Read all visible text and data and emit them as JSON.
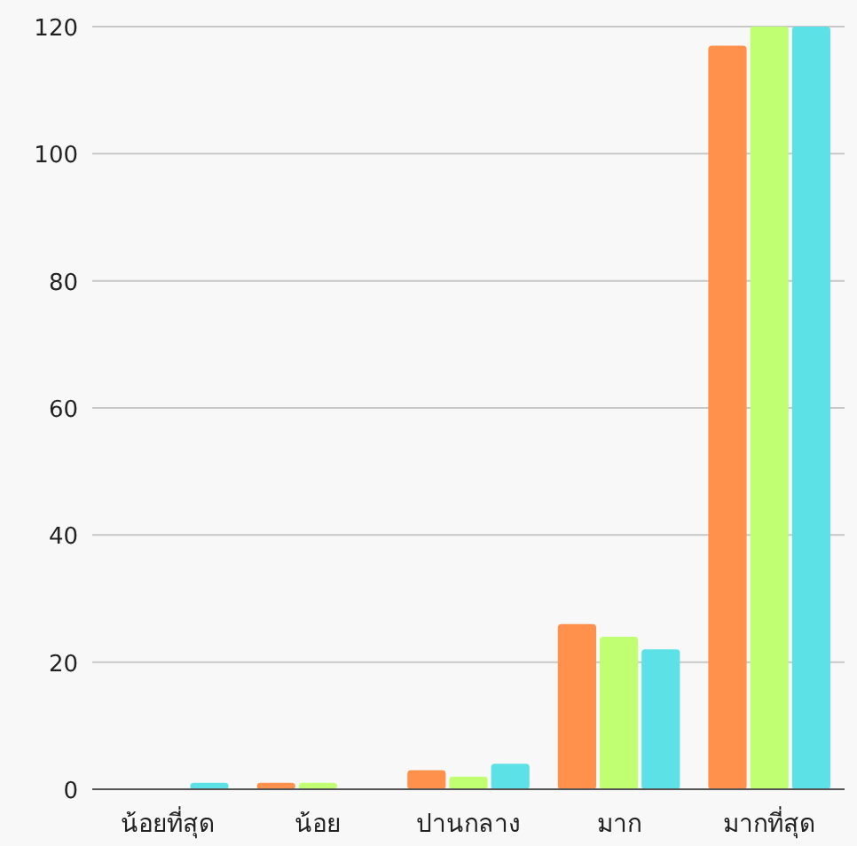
{
  "chart_data": {
    "type": "bar",
    "categories": [
      "น้อยที่สุด",
      "น้อย",
      "ปานกลาง",
      "มาก",
      "มากที่สุด"
    ],
    "series": [
      {
        "color": "#ff914d",
        "values": [
          0,
          1,
          3,
          26,
          117
        ]
      },
      {
        "color": "#c1ff72",
        "values": [
          0,
          1,
          2,
          24,
          120
        ]
      },
      {
        "color": "#5ce1e6",
        "values": [
          1,
          0,
          4,
          22,
          120
        ]
      }
    ],
    "ylim": [
      0,
      120
    ],
    "yticks": [
      0,
      20,
      40,
      60,
      80,
      100,
      120
    ],
    "grid": "y"
  }
}
